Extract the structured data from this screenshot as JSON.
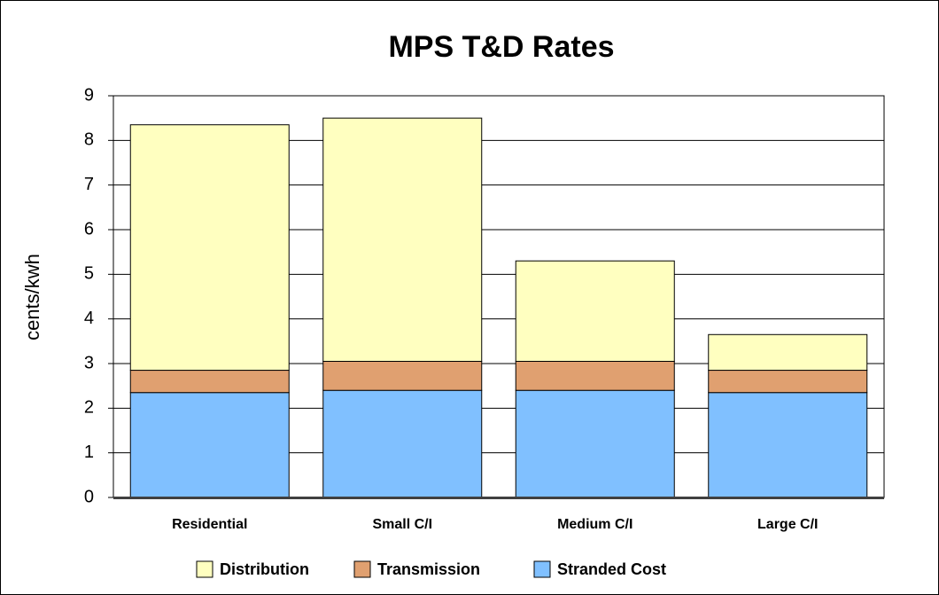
{
  "chart_data": {
    "type": "stacked_bar",
    "title": "MPS T&D Rates",
    "y_label": "cents/kwh",
    "categories": [
      "Residential",
      "Small C/I",
      "Medium C/I",
      "Large C/I"
    ],
    "series": [
      {
        "name": "Distribution",
        "color": "#ffffc0",
        "values": [
          5.5,
          5.45,
          2.25,
          0.8
        ]
      },
      {
        "name": "Transmission",
        "color": "#e0a070",
        "values": [
          0.5,
          0.65,
          0.65,
          0.5
        ]
      },
      {
        "name": "Stranded Cost",
        "color": "#80c0ff",
        "values": [
          2.35,
          2.4,
          2.4,
          2.35
        ]
      }
    ],
    "ylim": [
      0,
      9
    ],
    "yticks": [
      0,
      1,
      2,
      3,
      4,
      5,
      6,
      7,
      8,
      9
    ],
    "grid": true,
    "legend": "bottom"
  }
}
